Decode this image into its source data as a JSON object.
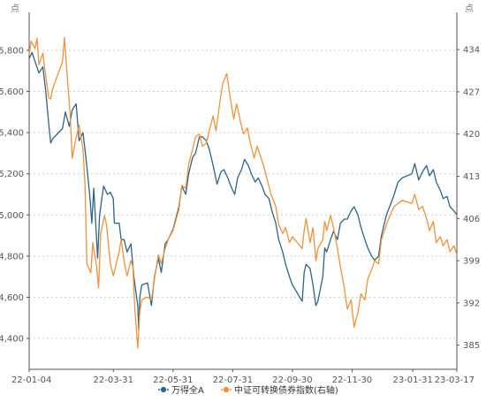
{
  "chart_data": {
    "type": "line",
    "left_axis_unit": "点",
    "right_axis_unit": "点",
    "x_tick_labels": [
      "22-01-04",
      "22-03-31",
      "22-05-31",
      "22-07-31",
      "22-09-30",
      "22-11-30",
      "23-01-31",
      "23-03-17"
    ],
    "y_left": {
      "ticks": [
        4400,
        4600,
        4800,
        5000,
        5200,
        5400,
        5600,
        5800
      ],
      "tick_labels": [
        "4,400",
        "4,600",
        "4,800",
        "5,000",
        "5,200",
        "5,400",
        "5,600",
        "5,800"
      ],
      "range": [
        4250,
        5950
      ]
    },
    "y_right": {
      "ticks": [
        385,
        392,
        399,
        406,
        413,
        420,
        427,
        434
      ],
      "tick_labels": [
        "385",
        "392",
        "399",
        "406",
        "413",
        "420",
        "427",
        "434"
      ],
      "range": [
        381,
        439
      ]
    },
    "grid": "horizontal dotted",
    "legend_position": "bottom-center",
    "series": [
      {
        "name": "万得全A",
        "axis": "left",
        "color": "#2f6388",
        "points": [
          [
            "2022-01-04",
            5760
          ],
          [
            "2022-01-07",
            5790
          ],
          [
            "2022-01-11",
            5730
          ],
          [
            "2022-01-14",
            5690
          ],
          [
            "2022-01-18",
            5720
          ],
          [
            "2022-01-21",
            5600
          ],
          [
            "2022-01-24",
            5440
          ],
          [
            "2022-01-26",
            5350
          ],
          [
            "2022-01-28",
            5370
          ],
          [
            "2022-02-07",
            5420
          ],
          [
            "2022-02-10",
            5500
          ],
          [
            "2022-02-14",
            5430
          ],
          [
            "2022-02-17",
            5510
          ],
          [
            "2022-02-21",
            5540
          ],
          [
            "2022-02-24",
            5360
          ],
          [
            "2022-02-28",
            5400
          ],
          [
            "2022-03-03",
            5280
          ],
          [
            "2022-03-07",
            5090
          ],
          [
            "2022-03-09",
            4960
          ],
          [
            "2022-03-11",
            5130
          ],
          [
            "2022-03-15",
            4790
          ],
          [
            "2022-03-17",
            5000
          ],
          [
            "2022-03-21",
            5140
          ],
          [
            "2022-03-23",
            5120
          ],
          [
            "2022-03-25",
            5100
          ],
          [
            "2022-03-28",
            5110
          ],
          [
            "2022-03-31",
            5080
          ],
          [
            "2022-04-01",
            4960
          ],
          [
            "2022-04-06",
            4960
          ],
          [
            "2022-04-08",
            4880
          ],
          [
            "2022-04-11",
            4880
          ],
          [
            "2022-04-14",
            4820
          ],
          [
            "2022-04-18",
            4860
          ],
          [
            "2022-04-21",
            4700
          ],
          [
            "2022-04-25",
            4560
          ],
          [
            "2022-04-26",
            4440
          ],
          [
            "2022-04-27",
            4600
          ],
          [
            "2022-04-29",
            4660
          ],
          [
            "2022-05-05",
            4670
          ],
          [
            "2022-05-09",
            4560
          ],
          [
            "2022-05-12",
            4700
          ],
          [
            "2022-05-16",
            4790
          ],
          [
            "2022-05-19",
            4720
          ],
          [
            "2022-05-23",
            4860
          ],
          [
            "2022-05-26",
            4880
          ],
          [
            "2022-05-31",
            4930
          ],
          [
            "2022-06-06",
            5040
          ],
          [
            "2022-06-09",
            5140
          ],
          [
            "2022-06-13",
            5100
          ],
          [
            "2022-06-16",
            5200
          ],
          [
            "2022-06-20",
            5280
          ],
          [
            "2022-06-23",
            5300
          ],
          [
            "2022-06-27",
            5380
          ],
          [
            "2022-06-30",
            5380
          ],
          [
            "2022-07-04",
            5360
          ],
          [
            "2022-07-07",
            5320
          ],
          [
            "2022-07-11",
            5240
          ],
          [
            "2022-07-15",
            5150
          ],
          [
            "2022-07-19",
            5210
          ],
          [
            "2022-07-22",
            5220
          ],
          [
            "2022-07-26",
            5180
          ],
          [
            "2022-07-29",
            5140
          ],
          [
            "2022-08-02",
            5100
          ],
          [
            "2022-08-05",
            5180
          ],
          [
            "2022-08-09",
            5220
          ],
          [
            "2022-08-12",
            5270
          ],
          [
            "2022-08-16",
            5240
          ],
          [
            "2022-08-19",
            5200
          ],
          [
            "2022-08-23",
            5160
          ],
          [
            "2022-08-26",
            5180
          ],
          [
            "2022-08-30",
            5140
          ],
          [
            "2022-09-02",
            5100
          ],
          [
            "2022-09-06",
            5080
          ],
          [
            "2022-09-09",
            5020
          ],
          [
            "2022-09-13",
            4960
          ],
          [
            "2022-09-16",
            4880
          ],
          [
            "2022-09-20",
            4820
          ],
          [
            "2022-09-23",
            4760
          ],
          [
            "2022-09-27",
            4700
          ],
          [
            "2022-09-30",
            4660
          ],
          [
            "2022-10-10",
            4580
          ],
          [
            "2022-10-12",
            4720
          ],
          [
            "2022-10-14",
            4760
          ],
          [
            "2022-10-18",
            4740
          ],
          [
            "2022-10-21",
            4660
          ],
          [
            "2022-10-24",
            4560
          ],
          [
            "2022-10-26",
            4580
          ],
          [
            "2022-10-31",
            4700
          ],
          [
            "2022-11-02",
            4840
          ],
          [
            "2022-11-04",
            4820
          ],
          [
            "2022-11-08",
            4880
          ],
          [
            "2022-11-11",
            4920
          ],
          [
            "2022-11-15",
            4880
          ],
          [
            "2022-11-18",
            4960
          ],
          [
            "2022-11-22",
            4980
          ],
          [
            "2022-11-25",
            4980
          ],
          [
            "2022-11-29",
            5020
          ],
          [
            "2022-12-02",
            5040
          ],
          [
            "2022-12-06",
            5000
          ],
          [
            "2022-12-09",
            4940
          ],
          [
            "2022-12-13",
            4880
          ],
          [
            "2022-12-16",
            4840
          ],
          [
            "2022-12-20",
            4800
          ],
          [
            "2022-12-23",
            4780
          ],
          [
            "2022-12-27",
            4800
          ],
          [
            "2022-12-30",
            4900
          ],
          [
            "2023-01-04",
            5000
          ],
          [
            "2023-01-09",
            5060
          ],
          [
            "2023-01-12",
            5100
          ],
          [
            "2023-01-16",
            5160
          ],
          [
            "2023-01-20",
            5180
          ],
          [
            "2023-01-30",
            5200
          ],
          [
            "2023-02-02",
            5250
          ],
          [
            "2023-02-06",
            5170
          ],
          [
            "2023-02-10",
            5210
          ],
          [
            "2023-02-14",
            5240
          ],
          [
            "2023-02-17",
            5190
          ],
          [
            "2023-02-21",
            5220
          ],
          [
            "2023-02-24",
            5160
          ],
          [
            "2023-02-28",
            5120
          ],
          [
            "2023-03-03",
            5080
          ],
          [
            "2023-03-07",
            5090
          ],
          [
            "2023-03-10",
            5040
          ],
          [
            "2023-03-14",
            5020
          ],
          [
            "2023-03-17",
            5000
          ]
        ]
      },
      {
        "name": "中证可转换债券指数(右轴)",
        "axis": "right",
        "color": "#f0923c",
        "points": [
          [
            "2022-01-04",
            433.2
          ],
          [
            "2022-01-06",
            435.4
          ],
          [
            "2022-01-10",
            434.2
          ],
          [
            "2022-01-12",
            435.9
          ],
          [
            "2022-01-14",
            431.5
          ],
          [
            "2022-01-18",
            433.4
          ],
          [
            "2022-01-20",
            430.8
          ],
          [
            "2022-01-24",
            426.0
          ],
          [
            "2022-01-26",
            425.8
          ],
          [
            "2022-01-28",
            427.5
          ],
          [
            "2022-02-07",
            432.0
          ],
          [
            "2022-02-09",
            436.0
          ],
          [
            "2022-02-11",
            431.5
          ],
          [
            "2022-02-15",
            423.0
          ],
          [
            "2022-02-17",
            416.0
          ],
          [
            "2022-02-21",
            419.5
          ],
          [
            "2022-02-24",
            421.5
          ],
          [
            "2022-02-28",
            417.5
          ],
          [
            "2022-03-02",
            412.0
          ],
          [
            "2022-03-04",
            398.5
          ],
          [
            "2022-03-08",
            397.0
          ],
          [
            "2022-03-10",
            402.0
          ],
          [
            "2022-03-14",
            398.0
          ],
          [
            "2022-03-16",
            394.5
          ],
          [
            "2022-03-18",
            403.5
          ],
          [
            "2022-03-22",
            406.5
          ],
          [
            "2022-03-24",
            405.0
          ],
          [
            "2022-03-28",
            398.5
          ],
          [
            "2022-03-31",
            396.5
          ],
          [
            "2022-04-06",
            400.5
          ],
          [
            "2022-04-08",
            402.5
          ],
          [
            "2022-04-12",
            398.0
          ],
          [
            "2022-04-14",
            396.5
          ],
          [
            "2022-04-18",
            399.0
          ],
          [
            "2022-04-20",
            398.0
          ],
          [
            "2022-04-22",
            391.0
          ],
          [
            "2022-04-25",
            384.5
          ],
          [
            "2022-04-27",
            390.5
          ],
          [
            "2022-04-29",
            392.5
          ],
          [
            "2022-05-05",
            393.0
          ],
          [
            "2022-05-09",
            392.5
          ],
          [
            "2022-05-12",
            396.0
          ],
          [
            "2022-05-16",
            400.0
          ],
          [
            "2022-05-19",
            398.5
          ],
          [
            "2022-05-23",
            401.0
          ],
          [
            "2022-05-26",
            402.5
          ],
          [
            "2022-05-31",
            404.0
          ],
          [
            "2022-06-06",
            407.5
          ],
          [
            "2022-06-09",
            411.5
          ],
          [
            "2022-06-13",
            411.0
          ],
          [
            "2022-06-16",
            415.0
          ],
          [
            "2022-06-20",
            417.5
          ],
          [
            "2022-06-23",
            419.5
          ],
          [
            "2022-06-27",
            420.0
          ],
          [
            "2022-06-30",
            418.0
          ],
          [
            "2022-07-04",
            418.5
          ],
          [
            "2022-07-07",
            420.5
          ],
          [
            "2022-07-11",
            423.0
          ],
          [
            "2022-07-14",
            420.5
          ],
          [
            "2022-07-18",
            425.5
          ],
          [
            "2022-07-21",
            428.5
          ],
          [
            "2022-07-25",
            430.0
          ],
          [
            "2022-07-28",
            426.5
          ],
          [
            "2022-08-01",
            422.5
          ],
          [
            "2022-08-04",
            425.0
          ],
          [
            "2022-08-08",
            422.0
          ],
          [
            "2022-08-11",
            420.0
          ],
          [
            "2022-08-15",
            421.0
          ],
          [
            "2022-08-18",
            418.5
          ],
          [
            "2022-08-22",
            416.0
          ],
          [
            "2022-08-25",
            418.0
          ],
          [
            "2022-08-29",
            416.0
          ],
          [
            "2022-09-01",
            414.5
          ],
          [
            "2022-09-05",
            412.0
          ],
          [
            "2022-09-08",
            410.0
          ],
          [
            "2022-09-13",
            408.0
          ],
          [
            "2022-09-16",
            405.0
          ],
          [
            "2022-09-20",
            403.5
          ],
          [
            "2022-09-23",
            404.5
          ],
          [
            "2022-09-27",
            402.0
          ],
          [
            "2022-09-30",
            403.0
          ],
          [
            "2022-10-10",
            401.0
          ],
          [
            "2022-10-12",
            404.0
          ],
          [
            "2022-10-14",
            406.0
          ],
          [
            "2022-10-18",
            402.0
          ],
          [
            "2022-10-21",
            404.5
          ],
          [
            "2022-10-24",
            399.0
          ],
          [
            "2022-10-26",
            401.0
          ],
          [
            "2022-10-31",
            402.5
          ],
          [
            "2022-11-02",
            405.5
          ],
          [
            "2022-11-04",
            404.0
          ],
          [
            "2022-11-08",
            406.5
          ],
          [
            "2022-11-11",
            404.5
          ],
          [
            "2022-11-15",
            401.0
          ],
          [
            "2022-11-18",
            398.0
          ],
          [
            "2022-11-22",
            394.5
          ],
          [
            "2022-11-25",
            391.0
          ],
          [
            "2022-11-29",
            392.5
          ],
          [
            "2022-12-02",
            388.0
          ],
          [
            "2022-12-06",
            390.5
          ],
          [
            "2022-12-09",
            393.5
          ],
          [
            "2022-12-13",
            392.5
          ],
          [
            "2022-12-16",
            396.0
          ],
          [
            "2022-12-20",
            397.5
          ],
          [
            "2022-12-23",
            399.0
          ],
          [
            "2022-12-27",
            398.5
          ],
          [
            "2022-12-30",
            402.5
          ],
          [
            "2023-01-04",
            405.0
          ],
          [
            "2023-01-09",
            407.0
          ],
          [
            "2023-01-12",
            408.0
          ],
          [
            "2023-01-16",
            408.5
          ],
          [
            "2023-01-20",
            409.0
          ],
          [
            "2023-01-30",
            408.5
          ],
          [
            "2023-02-02",
            410.0
          ],
          [
            "2023-02-06",
            407.5
          ],
          [
            "2023-02-10",
            408.0
          ],
          [
            "2023-02-14",
            406.0
          ],
          [
            "2023-02-17",
            404.0
          ],
          [
            "2023-02-21",
            405.5
          ],
          [
            "2023-02-24",
            402.0
          ],
          [
            "2023-02-28",
            403.0
          ],
          [
            "2023-03-03",
            401.5
          ],
          [
            "2023-03-07",
            402.5
          ],
          [
            "2023-03-10",
            400.5
          ],
          [
            "2023-03-14",
            401.5
          ],
          [
            "2023-03-17",
            400.0
          ]
        ]
      }
    ]
  }
}
